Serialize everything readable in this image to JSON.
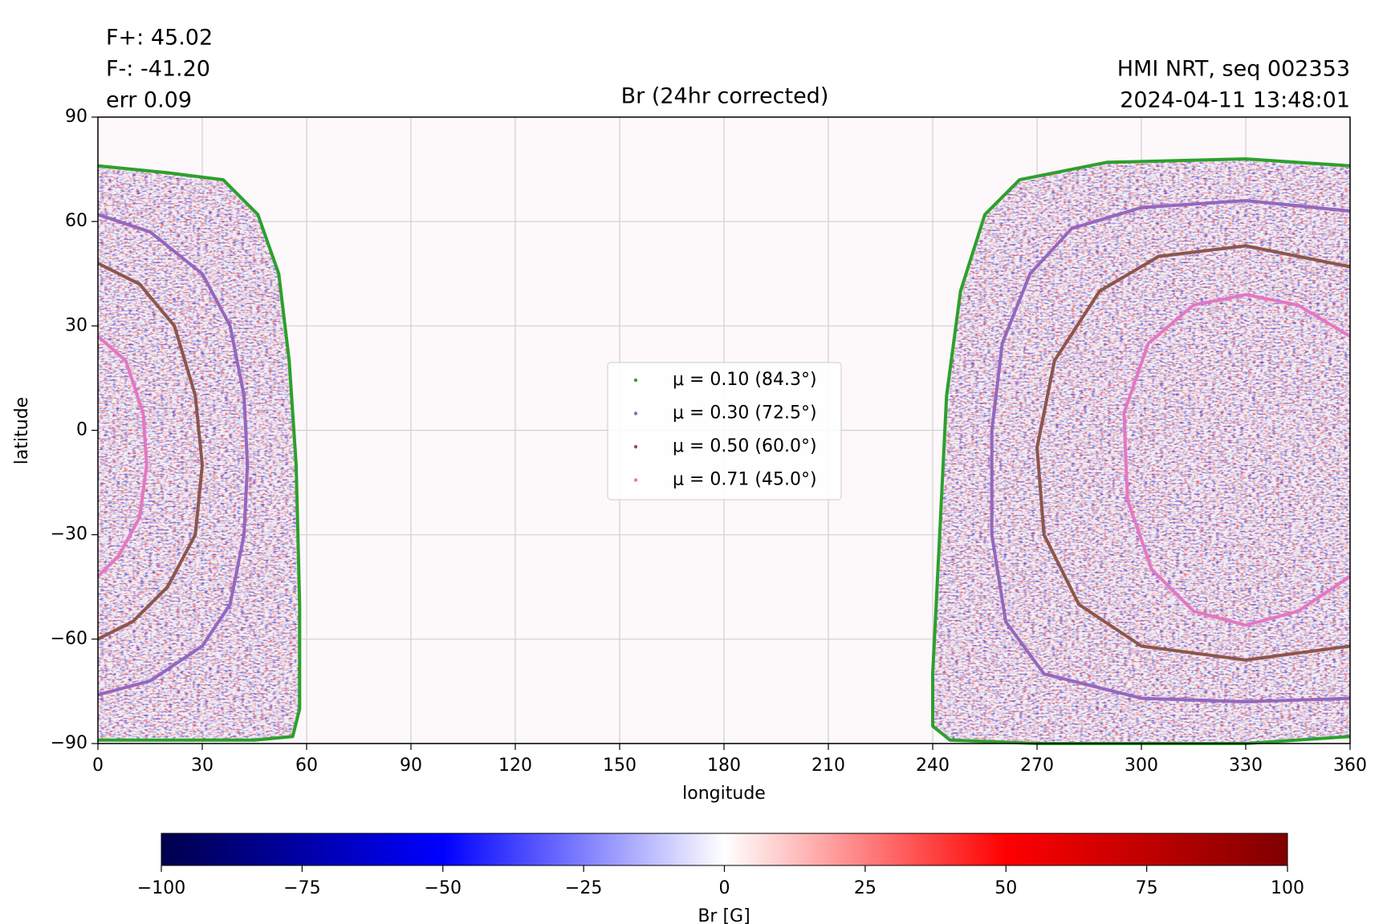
{
  "chart_data": {
    "type": "heatmap",
    "title": "Br (24hr corrected)",
    "annotations": {
      "top_left": [
        "F+: 45.02",
        "F-: -41.20",
        "err 0.09"
      ],
      "top_right": [
        "HMI NRT, seq 002353",
        "2024-04-11 13:48:01"
      ]
    },
    "x_label": "longitude",
    "y_label": "latitude",
    "xlim": [
      0,
      360
    ],
    "ylim": [
      -90,
      90
    ],
    "xticks": [
      0,
      30,
      60,
      90,
      120,
      150,
      180,
      210,
      240,
      270,
      300,
      330,
      360
    ],
    "yticks": [
      {
        "value": -90,
        "label": "−90"
      },
      {
        "value": -60,
        "label": "−60"
      },
      {
        "value": -30,
        "label": "−30"
      },
      0,
      30,
      60,
      90
    ],
    "grid": true,
    "series": [
      {
        "name": "μ = 0.10 (84.3°)",
        "color": "#2ca02c",
        "x": [
          0,
          20,
          36,
          46,
          52,
          55,
          57,
          58,
          58,
          56,
          45,
          0,
          null,
          360,
          330,
          290,
          265,
          255,
          248,
          244,
          242,
          240,
          240,
          245,
          270,
          330,
          360
        ],
        "y": [
          76,
          74,
          72,
          62,
          45,
          20,
          -10,
          -50,
          -80,
          -88,
          -89,
          -89,
          null,
          76,
          78,
          77,
          72,
          62,
          40,
          10,
          -30,
          -70,
          -85,
          -89,
          -90,
          -90,
          -88
        ]
      },
      {
        "name": "μ = 0.30 (72.5°)",
        "color": "#9467bd",
        "x": [
          0,
          15,
          30,
          38,
          42,
          43,
          42,
          38,
          30,
          15,
          0,
          null,
          360,
          330,
          300,
          280,
          268,
          260,
          257,
          257,
          261,
          272,
          300,
          330,
          360
        ],
        "y": [
          62,
          57,
          45,
          30,
          10,
          -10,
          -30,
          -50,
          -62,
          -72,
          -76,
          null,
          63,
          66,
          64,
          58,
          45,
          25,
          0,
          -30,
          -55,
          -70,
          -77,
          -78,
          -77
        ]
      },
      {
        "name": "μ = 0.50 (60.0°)",
        "color": "#8c564b",
        "x": [
          0,
          12,
          22,
          28,
          30,
          28,
          20,
          10,
          0,
          null,
          360,
          330,
          305,
          288,
          275,
          270,
          272,
          282,
          300,
          330,
          360
        ],
        "y": [
          48,
          42,
          30,
          10,
          -10,
          -30,
          -45,
          -55,
          -60,
          null,
          47,
          53,
          50,
          40,
          20,
          -5,
          -30,
          -50,
          -62,
          -66,
          -62
        ]
      },
      {
        "name": "μ = 0.71 (45.0°)",
        "color": "#e377c2",
        "x": [
          0,
          8,
          13,
          14,
          12,
          6,
          0,
          null,
          360,
          345,
          330,
          315,
          302,
          295,
          296,
          303,
          315,
          330,
          345,
          360
        ],
        "y": [
          27,
          20,
          5,
          -10,
          -25,
          -36,
          -42,
          null,
          27,
          36,
          39,
          36,
          25,
          5,
          -20,
          -40,
          -52,
          -56,
          -52,
          -42
        ]
      }
    ],
    "colorbar": {
      "label": "Br [G]",
      "zlim": [
        -100,
        100
      ],
      "colormap": [
        "#00004c",
        "#0000ff",
        "#ffffff",
        "#ff0000",
        "#7f0000"
      ],
      "ticks": [
        {
          "value": -100,
          "label": "−100"
        },
        {
          "value": -75,
          "label": "−75"
        },
        {
          "value": -50,
          "label": "−50"
        },
        {
          "value": -25,
          "label": "−25"
        },
        0,
        25,
        50,
        75,
        100
      ]
    }
  }
}
